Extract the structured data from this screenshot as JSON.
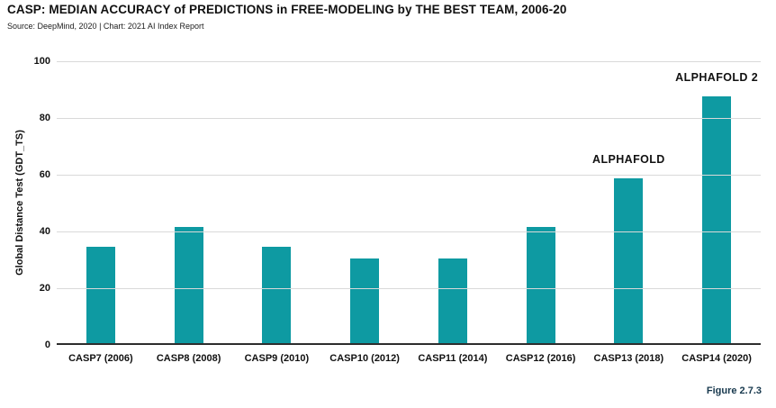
{
  "header": {
    "title": "CASP: MEDIAN ACCURACY of PREDICTIONS in FREE-MODELING by THE BEST TEAM, 2006-20",
    "source": "Source: DeepMind, 2020 | Chart: 2021 AI Index Report"
  },
  "footer": {
    "figure_label": "Figure 2.7.3"
  },
  "colors": {
    "bar": "#0e9aa2",
    "gridline": "#d9d9d9",
    "axis_line": "#2e2e2e",
    "text": "#111111",
    "figure_label": "#17384d"
  },
  "chart_data": {
    "type": "bar",
    "title": "CASP: MEDIAN ACCURACY of PREDICTIONS in FREE-MODELING by THE BEST TEAM, 2006-20",
    "subtitle": "Source: DeepMind, 2020 | Chart: 2021 AI Index Report",
    "categories": [
      "CASP7 (2006)",
      "CASP8 (2008)",
      "CASP9 (2010)",
      "CASP10 (2012)",
      "CASP11 (2014)",
      "CASP12 (2016)",
      "CASP13 (2018)",
      "CASP14 (2020)"
    ],
    "values": [
      34,
      41,
      34,
      30,
      30,
      41,
      58,
      87
    ],
    "xlabel": "",
    "ylabel": "Global Distance Test (GDT_TS)",
    "ylim": [
      0,
      100
    ],
    "yticks": [
      0,
      20,
      40,
      60,
      80,
      100
    ],
    "grid": true,
    "legend": "none",
    "annotations": [
      {
        "category_index": 6,
        "text": "ALPHAFOLD"
      },
      {
        "category_index": 7,
        "text": "ALPHAFOLD 2"
      }
    ]
  }
}
